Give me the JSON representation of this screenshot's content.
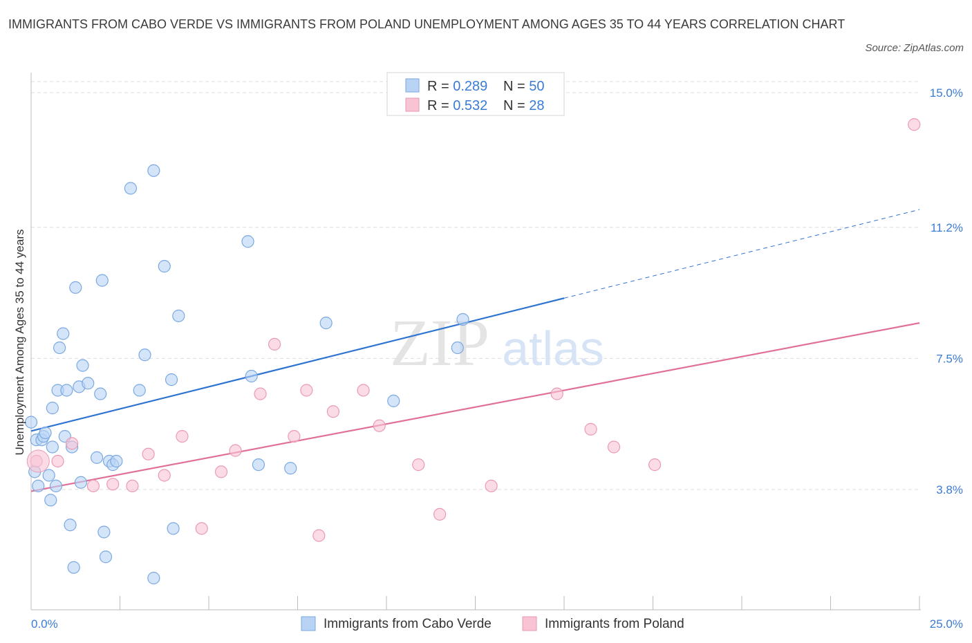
{
  "title": "IMMIGRANTS FROM CABO VERDE VS IMMIGRANTS FROM POLAND UNEMPLOYMENT AMONG AGES 35 TO 44 YEARS CORRELATION CHART",
  "source": "Source: ZipAtlas.com",
  "watermark": {
    "zip": "ZIP",
    "atlas": "atlas"
  },
  "colors": {
    "blue_fill": "#b9d3f5",
    "blue_stroke": "#7aa8e0",
    "blue_line": "#2f74d0",
    "pink_fill": "#f8c3d3",
    "pink_stroke": "#e99ab3",
    "pink_line": "#e0709a",
    "tick_label": "#3a7bd5",
    "grid": "#dddddd"
  },
  "legend": {
    "rows": [
      {
        "r_label": "R = ",
        "r_value": "0.289",
        "n_label": "N = ",
        "n_value": "50"
      },
      {
        "r_label": "R = ",
        "r_value": "0.532",
        "n_label": "N = ",
        "n_value": "28"
      }
    ]
  },
  "bottom_legend": [
    "Immigrants from Cabo Verde",
    "Immigrants from Poland"
  ],
  "chart_data": {
    "type": "scatter",
    "title": "IMMIGRANTS FROM CABO VERDE VS IMMIGRANTS FROM POLAND UNEMPLOYMENT AMONG AGES 35 TO 44 YEARS CORRELATION CHART",
    "xlabel": "",
    "ylabel": "Unemployment Among Ages 35 to 44 years",
    "xlim": [
      0,
      25
    ],
    "ylim": [
      0,
      15.3
    ],
    "x_tick_labels": [
      "0.0%",
      "25.0%"
    ],
    "y_ticks": [
      3.8,
      7.5,
      11.2,
      15.0
    ],
    "y_tick_labels": [
      "3.8%",
      "7.5%",
      "11.2%",
      "15.0%"
    ],
    "grid": true,
    "legend_placement": "top-center",
    "series": [
      {
        "name": "Immigrants from Cabo Verde",
        "R": 0.289,
        "N": 50,
        "trend": {
          "x0": 0,
          "y0": 5.45,
          "x1": 15,
          "y1": 9.2,
          "dashed_to_x": 25,
          "dashed_to_y": 11.7
        },
        "points": [
          [
            0.0,
            5.7
          ],
          [
            0.1,
            4.3
          ],
          [
            0.15,
            5.2
          ],
          [
            0.2,
            3.9
          ],
          [
            0.3,
            5.2
          ],
          [
            0.35,
            5.3
          ],
          [
            0.4,
            5.4
          ],
          [
            0.5,
            4.2
          ],
          [
            0.55,
            3.5
          ],
          [
            0.6,
            6.1
          ],
          [
            0.6,
            5.0
          ],
          [
            0.7,
            3.9
          ],
          [
            0.75,
            6.6
          ],
          [
            0.8,
            7.8
          ],
          [
            0.9,
            8.2
          ],
          [
            0.95,
            5.3
          ],
          [
            1.0,
            6.6
          ],
          [
            1.1,
            2.8
          ],
          [
            1.15,
            5.0
          ],
          [
            1.2,
            1.6
          ],
          [
            1.25,
            9.5
          ],
          [
            1.35,
            6.7
          ],
          [
            1.4,
            4.0
          ],
          [
            1.45,
            7.3
          ],
          [
            1.6,
            6.8
          ],
          [
            1.85,
            4.7
          ],
          [
            1.95,
            6.5
          ],
          [
            2.0,
            9.7
          ],
          [
            2.05,
            2.6
          ],
          [
            2.1,
            1.9
          ],
          [
            2.2,
            4.6
          ],
          [
            2.3,
            4.5
          ],
          [
            2.4,
            4.6
          ],
          [
            2.8,
            12.3
          ],
          [
            3.05,
            6.6
          ],
          [
            3.2,
            7.6
          ],
          [
            3.45,
            12.8
          ],
          [
            3.45,
            1.3
          ],
          [
            3.75,
            10.1
          ],
          [
            3.95,
            6.9
          ],
          [
            4.0,
            2.7
          ],
          [
            4.15,
            8.7
          ],
          [
            6.1,
            10.8
          ],
          [
            6.2,
            7.0
          ],
          [
            6.4,
            4.5
          ],
          [
            7.3,
            4.4
          ],
          [
            8.3,
            8.5
          ],
          [
            10.2,
            6.3
          ],
          [
            12.0,
            7.8
          ],
          [
            12.15,
            8.6
          ]
        ]
      },
      {
        "name": "Immigrants from Poland",
        "R": 0.532,
        "N": 28,
        "trend": {
          "x0": 0,
          "y0": 3.75,
          "x1": 25,
          "y1": 8.5
        },
        "points": [
          [
            0.15,
            4.6
          ],
          [
            0.75,
            4.6
          ],
          [
            1.15,
            5.1
          ],
          [
            1.75,
            3.9
          ],
          [
            2.3,
            3.95
          ],
          [
            2.85,
            3.9
          ],
          [
            3.3,
            4.8
          ],
          [
            3.75,
            4.2
          ],
          [
            4.25,
            5.3
          ],
          [
            4.8,
            2.7
          ],
          [
            5.35,
            4.3
          ],
          [
            5.75,
            4.9
          ],
          [
            6.45,
            6.5
          ],
          [
            6.85,
            7.9
          ],
          [
            7.4,
            5.3
          ],
          [
            7.75,
            6.6
          ],
          [
            8.1,
            2.5
          ],
          [
            8.5,
            6.0
          ],
          [
            9.35,
            6.6
          ],
          [
            9.8,
            5.6
          ],
          [
            10.9,
            4.5
          ],
          [
            11.5,
            3.1
          ],
          [
            12.95,
            3.9
          ],
          [
            14.8,
            6.5
          ],
          [
            15.75,
            5.5
          ],
          [
            16.4,
            5.0
          ],
          [
            17.55,
            4.5
          ],
          [
            24.85,
            14.1
          ]
        ]
      }
    ]
  }
}
